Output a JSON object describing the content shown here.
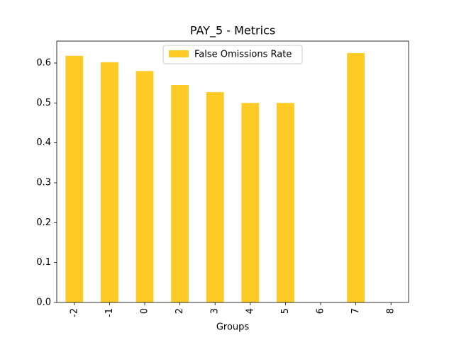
{
  "chart_data": {
    "type": "bar",
    "title": "PAY_5 - Metrics",
    "x_label": "Groups",
    "categories": [
      "-2",
      "-1",
      "0",
      "2",
      "3",
      "4",
      "5",
      "6",
      "7",
      "8"
    ],
    "series": [
      {
        "name": "False Omissions Rate",
        "color": "#fdca26",
        "values": [
          0.618,
          0.602,
          0.58,
          0.545,
          0.527,
          0.5,
          0.5,
          null,
          0.625,
          null
        ]
      }
    ],
    "ylim": [
      0,
      0.655
    ],
    "yticks": [
      {
        "value": 0,
        "label": "0.0"
      },
      0.1,
      0.2,
      0.3,
      0.4,
      0.5,
      0.6
    ],
    "legend": "upper center"
  }
}
